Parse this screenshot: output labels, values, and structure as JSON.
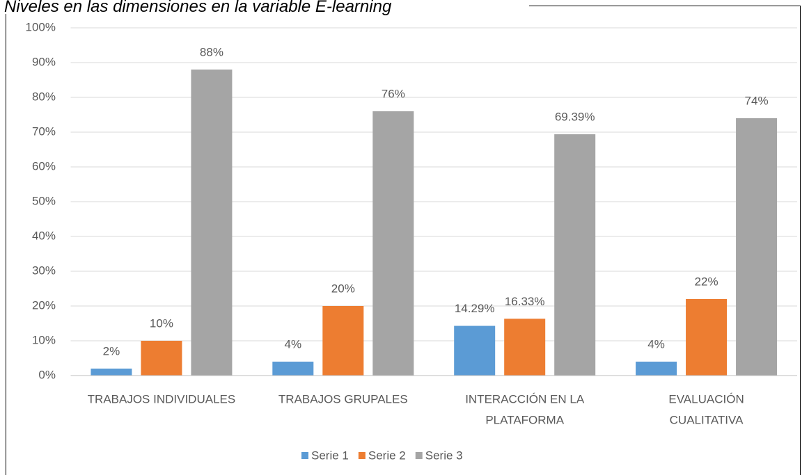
{
  "chart_data": {
    "type": "bar",
    "title": "Niveles en las dimensiones en la variable E-learning",
    "categories": [
      [
        "TRABAJOS INDIVIDUALES"
      ],
      [
        "TRABAJOS GRUPALES"
      ],
      [
        "INTERACCIÓN EN LA",
        "PLATAFORMA"
      ],
      [
        "EVALUACIÓN",
        "CUALITATIVA"
      ]
    ],
    "series": [
      {
        "name": "Serie 1",
        "color": "#5b9bd5",
        "values": [
          2,
          4,
          14.29,
          4
        ],
        "value_labels": [
          "2%",
          "4%",
          "14.29%",
          "4%"
        ]
      },
      {
        "name": "Serie 2",
        "color": "#ed7d31",
        "values": [
          10,
          20,
          16.33,
          22
        ],
        "value_labels": [
          "10%",
          "20%",
          "16.33%",
          "22%"
        ]
      },
      {
        "name": "Serie 3",
        "color": "#a5a5a5",
        "values": [
          88,
          76,
          69.39,
          74
        ],
        "value_labels": [
          "88%",
          "76%",
          "69.39%",
          "74%"
        ]
      }
    ],
    "ylim": [
      0,
      100
    ],
    "yticks": [
      {
        "value": 0,
        "label": "0%"
      },
      {
        "value": 10,
        "label": "10%"
      },
      {
        "value": 20,
        "label": "20%"
      },
      {
        "value": 30,
        "label": "30%"
      },
      {
        "value": 40,
        "label": "40%"
      },
      {
        "value": 50,
        "label": "50%"
      },
      {
        "value": 60,
        "label": "60%"
      },
      {
        "value": 70,
        "label": "70%"
      },
      {
        "value": 80,
        "label": "80%"
      },
      {
        "value": 90,
        "label": "90%"
      },
      {
        "value": 100,
        "label": "100%"
      }
    ],
    "grid": true,
    "legend": "bottom"
  }
}
